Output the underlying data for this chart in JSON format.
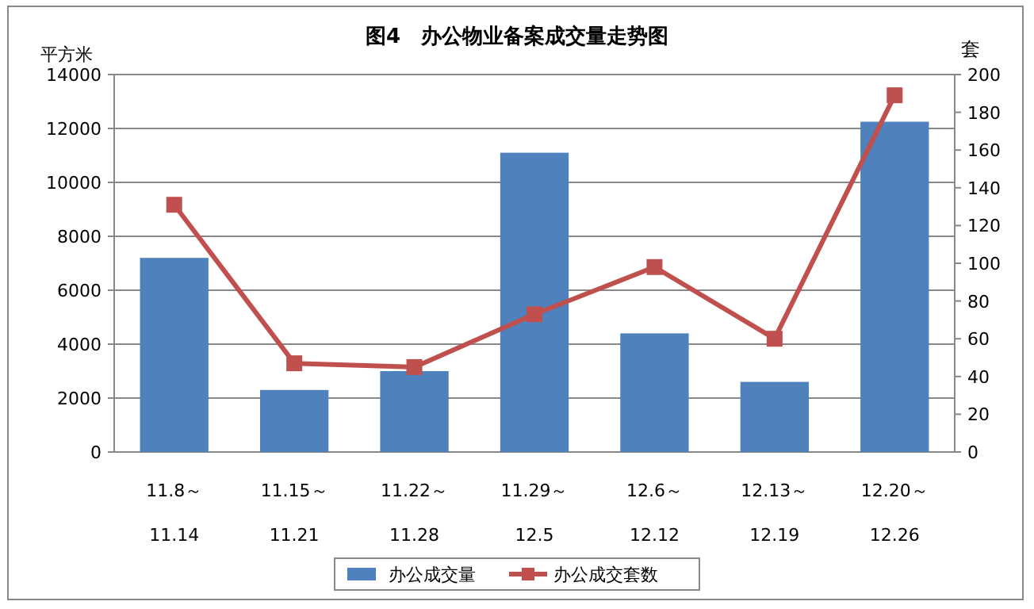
{
  "chart_data": {
    "type": "bar",
    "title": "图4　办公物业备案成交量走势图",
    "categories": [
      "11.8～ 11.14",
      "11.15～ 11.21",
      "11.22～ 11.28",
      "11.29～ 12.5",
      "12.6～ 12.12",
      "12.13～ 12.19",
      "12.20～ 12.26"
    ],
    "series": [
      {
        "name": "办公成交量",
        "color": "#4f81bd",
        "values": [
          7200,
          2300,
          3000,
          11100,
          4400,
          2600,
          12250
        ]
      },
      {
        "name": "办公成交套数",
        "type": "line",
        "axis": "y2",
        "color": "#c0504d",
        "marker": "square",
        "values": [
          131,
          47,
          45,
          73,
          98,
          60,
          189
        ]
      }
    ],
    "ylabel": "平方米",
    "y2label": "套",
    "ylim": [
      0,
      14000
    ],
    "yticks": [
      0,
      2000,
      4000,
      6000,
      8000,
      10000,
      12000,
      14000
    ],
    "y2lim": [
      0,
      200
    ],
    "y2ticks": [
      0,
      20,
      40,
      60,
      80,
      100,
      120,
      140,
      160,
      180,
      200
    ],
    "grid": "y",
    "legend": "bottom"
  }
}
